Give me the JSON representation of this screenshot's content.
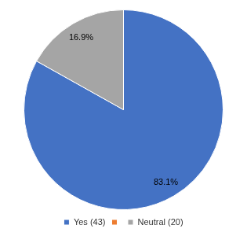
{
  "chart_data": {
    "type": "pie",
    "categories": [
      "Yes (43)",
      null,
      "Neutral (20)"
    ],
    "values": [
      83.1,
      0,
      16.9
    ],
    "value_labels": [
      "83.1%",
      null,
      "16.9%"
    ],
    "colors": [
      "#4472c4",
      "#ed7d31",
      "#a5a5a5"
    ],
    "legend": "bottom",
    "data_labels": true
  }
}
